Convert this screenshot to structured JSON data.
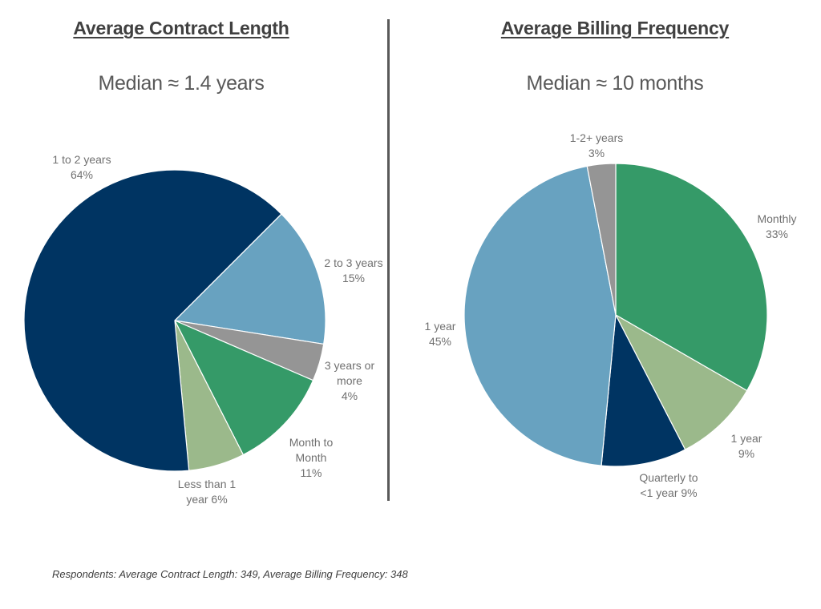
{
  "left": {
    "title": "Average Contract Length",
    "median": "Median ≈ 1.4 years"
  },
  "right": {
    "title": "Average Billing Frequency",
    "median": "Median ≈ 10 months"
  },
  "footnote": "Respondents: Average Contract Length: 349, Average Billing Frequency: 348",
  "chart_data": [
    {
      "type": "pie",
      "title": "Average Contract Length",
      "subtitle": "Median ≈ 1.4 years",
      "start": "top-clockwise-offset",
      "slices": [
        {
          "label": [
            "2 to 3 years",
            "15%"
          ],
          "value": 15,
          "color": "#68A2C0"
        },
        {
          "label": [
            "3 years or",
            "more",
            "4%"
          ],
          "value": 4,
          "color": "#959595"
        },
        {
          "label": [
            "Month to",
            "Month",
            "11%"
          ],
          "value": 11,
          "color": "#359A68"
        },
        {
          "label": [
            "Less than 1",
            "year 6%"
          ],
          "value": 6,
          "color": "#9BB98B"
        },
        {
          "label": [
            "1 to 2 years",
            "64%"
          ],
          "value": 64,
          "color": "#003462"
        }
      ]
    },
    {
      "type": "pie",
      "title": "Average Billing Frequency",
      "subtitle": "Median ≈ 10 months",
      "start": "top-clockwise",
      "slices": [
        {
          "label": [
            "Monthly",
            "33%"
          ],
          "value": 33,
          "color": "#359A68"
        },
        {
          "label": [
            "1 year",
            "9%"
          ],
          "value": 9,
          "color": "#9BB98B"
        },
        {
          "label": [
            "Quarterly to",
            "<1 year 9%"
          ],
          "value": 9,
          "color": "#003462"
        },
        {
          "label": [
            "1 year",
            "45%"
          ],
          "value": 45,
          "color": "#68A2C0"
        },
        {
          "label": [
            "1-2+ years",
            "3%"
          ],
          "value": 3,
          "color": "#959595"
        }
      ]
    }
  ]
}
